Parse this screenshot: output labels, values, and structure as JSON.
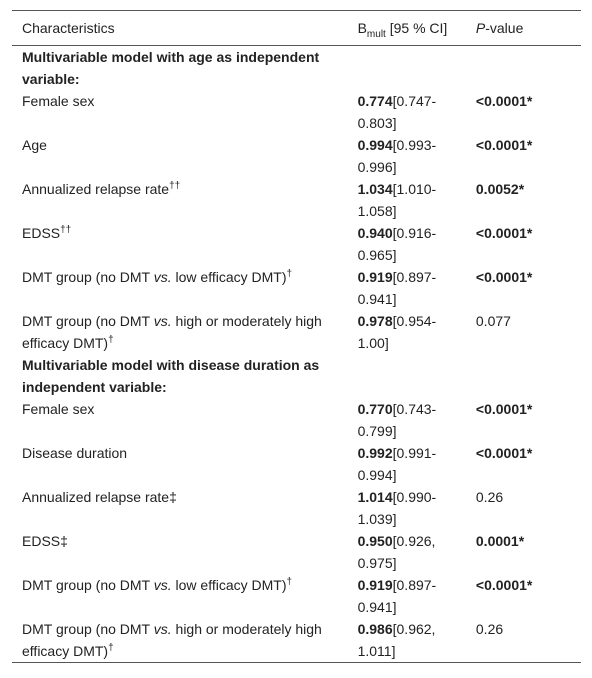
{
  "table": {
    "header": [
      [
        "Characteristics"
      ],
      [
        "B",
        {
          "sub": "mult"
        },
        " [95 % CI]"
      ],
      [
        {
          "italic": "P"
        },
        "-value"
      ]
    ],
    "sections": [
      {
        "title": "Multivariable model with age as independent variable:",
        "rows": [
          {
            "label": [
              "Female sex"
            ],
            "estimate": "0.774",
            "ci": "[0.747-0.803]",
            "p": "<0.0001*"
          },
          {
            "label": [
              "Age"
            ],
            "estimate": "0.994",
            "ci": "[0.993-0.996]",
            "p": "<0.0001*"
          },
          {
            "label": [
              "Annualized relapse rate",
              {
                "sup": "††"
              }
            ],
            "estimate": "1.034",
            "ci": "[1.010-1.058]",
            "p": "0.0052*"
          },
          {
            "label": [
              "EDSS",
              {
                "sup": "††"
              }
            ],
            "estimate": "0.940",
            "ci": "[0.916-0.965]",
            "p": "<0.0001*"
          },
          {
            "label": [
              "DMT group (no DMT ",
              {
                "italic": "vs."
              },
              " low efficacy DMT)",
              {
                "sup": "†"
              }
            ],
            "estimate": "0.919",
            "ci": "[0.897-0.941]",
            "p": "<0.0001*"
          },
          {
            "label": [
              "DMT group (no DMT ",
              {
                "italic": "vs."
              },
              " high or moderately high efficacy DMT)",
              {
                "sup": "†"
              }
            ],
            "estimate": "0.978",
            "ci": "[0.954-1.00]",
            "p": "0.077"
          }
        ]
      },
      {
        "title": "Multivariable model with disease duration as independent variable:",
        "rows": [
          {
            "label": [
              "Female sex"
            ],
            "estimate": "0.770",
            "ci": "[0.743-0.799]",
            "p": "<0.0001*"
          },
          {
            "label": [
              "Disease duration"
            ],
            "estimate": "0.992",
            "ci": "[0.991-0.994]",
            "p": "<0.0001*"
          },
          {
            "label": [
              "Annualized relapse rate‡"
            ],
            "estimate": "1.014",
            "ci": "[0.990-1.039]",
            "p": "0.26"
          },
          {
            "label": [
              "EDSS‡"
            ],
            "estimate": "0.950",
            "ci": "[0.926, 0.975]",
            "p": "0.0001*"
          },
          {
            "label": [
              "DMT group (no DMT ",
              {
                "italic": "vs."
              },
              " low efficacy DMT)",
              {
                "sup": "†"
              }
            ],
            "estimate": "0.919",
            "ci": "[0.897-0.941]",
            "p": "<0.0001*"
          },
          {
            "label": [
              "DMT group (no DMT ",
              {
                "italic": "vs."
              },
              " high or moderately high efficacy DMT)",
              {
                "sup": "†"
              }
            ],
            "estimate": "0.986",
            "ci": "[0.962, 1.011]",
            "p": "0.26"
          }
        ]
      }
    ]
  }
}
